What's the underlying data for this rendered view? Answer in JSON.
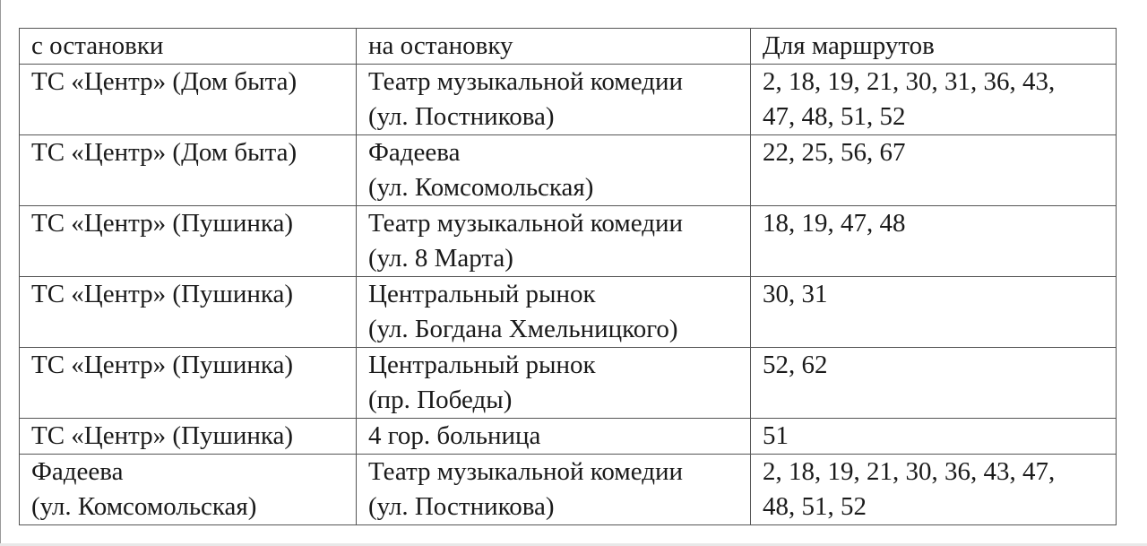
{
  "table": {
    "headers": [
      "с остановки",
      "на остановку",
      "Для маршрутов"
    ],
    "rows": [
      [
        "ТС «Центр» (Дом быта)",
        "Театр музыкальной комедии\n(ул. Постникова)",
        "2, 18, 19, 21, 30, 31, 36, 43,\n47, 48, 51, 52"
      ],
      [
        "ТС «Центр» (Дом быта)",
        "Фадеева\n(ул. Комсомольская)",
        "22, 25, 56, 67"
      ],
      [
        "ТС «Центр» (Пушинка)",
        "Театр музыкальной комедии\n(ул. 8 Марта)",
        "18, 19, 47, 48"
      ],
      [
        "ТС «Центр» (Пушинка)",
        "Центральный рынок\n(ул. Богдана Хмельницкого)",
        "30, 31"
      ],
      [
        "ТС «Центр» (Пушинка)",
        "Центральный рынок\n(пр. Победы)",
        "52, 62"
      ],
      [
        "ТС «Центр» (Пушинка)",
        "4 гор. больница",
        "51"
      ],
      [
        "Фадеева\n(ул. Комсомольская)",
        "Театр музыкальной комедии\n(ул. Постникова)",
        "2, 18, 19, 21, 30, 36, 43, 47,\n48, 51, 52"
      ]
    ]
  }
}
